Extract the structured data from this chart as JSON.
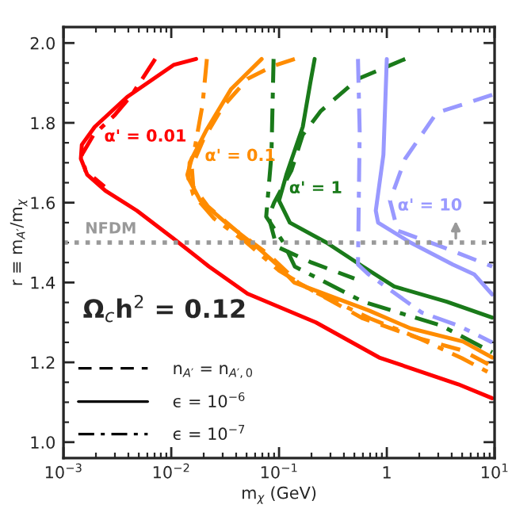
{
  "chart_data": {
    "type": "line",
    "xlabel": "m$_{χ}$ (GeV)",
    "ylabel": "r ≡ m$_{A′}$/m$_{χ}$",
    "log": "x",
    "xlim": [
      0.001,
      10
    ],
    "ylim": [
      0.96,
      2.04
    ],
    "xticks": [
      {
        "value": 0.001,
        "label": "10$^{−3}$"
      },
      {
        "value": 0.01,
        "label": "10$^{−2}$"
      },
      {
        "value": 0.1,
        "label": "10$^{−1}$"
      },
      1,
      {
        "value": 10,
        "label": "10$^{1}$"
      }
    ],
    "yticks": [
      {
        "value": 1.0,
        "label": "1.0"
      },
      {
        "value": 1.2,
        "label": "1.2"
      },
      {
        "value": 1.4,
        "label": "1.4"
      },
      {
        "value": 1.6,
        "label": "1.6"
      },
      {
        "value": 1.8,
        "label": "1.8"
      },
      {
        "value": 2.0,
        "label": "2.0"
      }
    ],
    "grid": false,
    "legend": "bottom left",
    "series": [
      {
        "color": "#ff0000",
        "line_style": "solid",
        "x": [
          0.017,
          0.0105,
          0.0039,
          0.00195,
          0.00148,
          0.00145,
          0.00166,
          0.00245,
          0.0048,
          0.0105,
          0.0224,
          0.051,
          0.22,
          0.85,
          4.6,
          9.5
        ],
        "values": [
          1.96,
          1.945,
          1.865,
          1.79,
          1.745,
          1.71,
          1.67,
          1.63,
          1.58,
          1.51,
          1.44,
          1.372,
          1.3,
          1.212,
          1.145,
          1.11
        ]
      },
      {
        "color": "#ff0000",
        "line_style": "dashdot",
        "x": [
          0.0071,
          0.0043,
          0.003,
          0.0019,
          0.00148,
          0.0016,
          0.0024
        ],
        "values": [
          1.96,
          1.87,
          1.82,
          1.77,
          1.72,
          1.68,
          1.64
        ]
      },
      {
        "color": "#ff8c00",
        "line_style": "solid",
        "x": [
          0.069,
          0.036,
          0.021,
          0.0148,
          0.0145,
          0.0186,
          0.032,
          0.065,
          0.1,
          0.138,
          0.68,
          1.66,
          5.1,
          9.5
        ],
        "values": [
          1.96,
          1.885,
          1.78,
          1.7,
          1.66,
          1.605,
          1.55,
          1.485,
          1.44,
          1.4,
          1.33,
          1.285,
          1.252,
          1.212
        ]
      },
      {
        "color": "#ff8c00",
        "line_style": "dashed",
        "x": [
          0.14,
          0.089,
          0.051,
          0.03,
          0.02,
          0.0155,
          0.016,
          0.022,
          0.04,
          0.08,
          0.15,
          0.6,
          2,
          5,
          9.5
        ],
        "values": [
          1.96,
          1.943,
          1.91,
          1.84,
          1.76,
          1.69,
          1.64,
          1.59,
          1.53,
          1.47,
          1.4,
          1.31,
          1.26,
          1.23,
          1.19
        ]
      },
      {
        "color": "#ff8c00",
        "line_style": "dashdot",
        "x": [
          0.0214,
          0.0195,
          0.0166,
          0.0141,
          0.016,
          0.025,
          0.05,
          0.1,
          0.2,
          0.7,
          2,
          5,
          9.5
        ],
        "values": [
          1.96,
          1.845,
          1.74,
          1.67,
          1.62,
          1.56,
          1.5,
          1.43,
          1.38,
          1.31,
          1.26,
          1.21,
          1.17
        ]
      },
      {
        "color": "#1a7a1a",
        "line_style": "solid",
        "x": [
          0.214,
          0.195,
          0.166,
          0.117,
          0.1,
          0.126,
          0.275,
          0.6,
          1.17,
          3.6,
          9.5
        ],
        "values": [
          1.96,
          1.9,
          1.79,
          1.67,
          1.605,
          1.55,
          1.5,
          1.44,
          1.39,
          1.352,
          1.312
        ]
      },
      {
        "color": "#1a7a1a",
        "line_style": "dashed",
        "x": [
          1.48,
          0.54,
          0.245,
          0.166,
          0.13,
          0.09,
          0.08,
          0.095,
          0.2,
          0.5
        ],
        "values": [
          1.96,
          1.91,
          1.83,
          1.77,
          1.68,
          1.6,
          1.565,
          1.49,
          1.45,
          1.41
        ]
      },
      {
        "color": "#1a7a1a",
        "line_style": "dashdot",
        "x": [
          0.089,
          0.085,
          0.076,
          0.11,
          0.14,
          0.6,
          3.2,
          9.5
        ],
        "values": [
          1.96,
          1.72,
          1.565,
          1.5,
          1.44,
          1.352,
          1.292,
          1.225
        ]
      },
      {
        "color": "#9999ff",
        "line_style": "solid",
        "x": [
          1.0,
          0.93,
          0.79,
          0.83,
          1.66,
          4.1,
          6.5,
          9.5
        ],
        "values": [
          1.96,
          1.72,
          1.58,
          1.55,
          1.5,
          1.445,
          1.42,
          1.37
        ]
      },
      {
        "color": "#9999ff",
        "line_style": "dashed",
        "x": [
          9.5,
          2.9,
          1.48,
          1.07,
          1.26,
          3.6,
          9.5
        ],
        "values": [
          1.87,
          1.825,
          1.71,
          1.605,
          1.53,
          1.485,
          1.44
        ]
      },
      {
        "color": "#9999ff",
        "line_style": "dashdot",
        "x": [
          0.54,
          0.56,
          0.54,
          0.68,
          2.1,
          4.6,
          9.5
        ],
        "values": [
          1.96,
          1.78,
          1.445,
          1.42,
          1.325,
          1.292,
          1.25
        ]
      },
      {
        "name": "n$_{A′}$ = n$_{A′,0}$",
        "color": "#000000",
        "line_style": "dashed"
      },
      {
        "name": "ϵ = 10$^{−6}$",
        "color": "#000000",
        "line_style": "solid"
      },
      {
        "name": "ϵ = 10$^{−7}$",
        "color": "#000000",
        "line_style": "dashdot"
      }
    ],
    "ref_lines": [
      {
        "axis": "y",
        "value": 1.5,
        "label": "NFDM",
        "color": "#999999",
        "line_style": "dotted"
      }
    ],
    "annotations": [
      "Ω$_{c}$h$^{2}$ = 0.12",
      "α' = 0.01",
      "α' = 0.1",
      "α' = 1",
      "α' = 10"
    ]
  }
}
